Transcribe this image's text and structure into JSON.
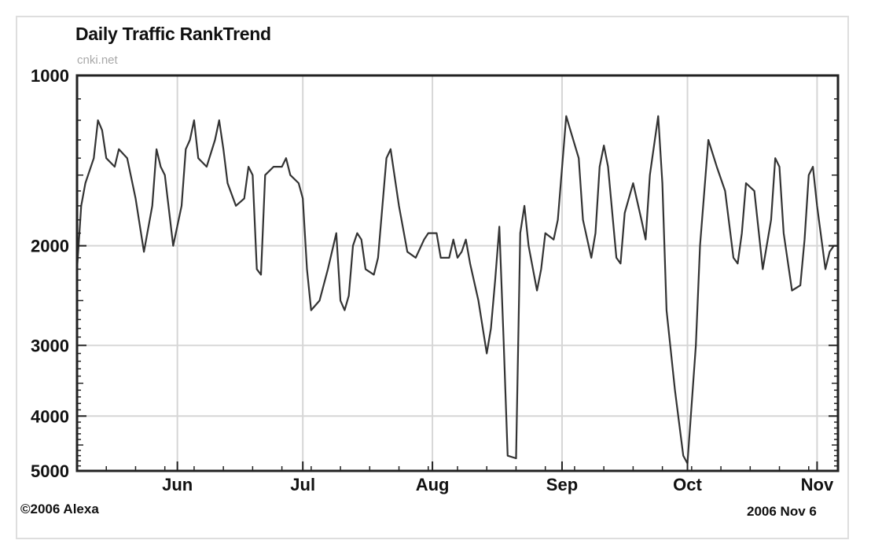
{
  "chart_data": {
    "type": "line",
    "title": "Daily Traffic RankTrend",
    "subtitle": "cnki.net",
    "copyright": "©2006 Alexa",
    "date_stamp": "2006 Nov 6",
    "y_scale": "log",
    "y_inverted": true,
    "ylim": [
      1000,
      5000
    ],
    "y_ticks": [
      {
        "value": 1000,
        "label": "1000"
      },
      {
        "value": 2000,
        "label": "2000"
      },
      {
        "value": 3000,
        "label": "3000"
      },
      {
        "value": 4000,
        "label": "4000"
      },
      {
        "value": 5000,
        "label": "5000"
      }
    ],
    "xlim": [
      "2006-05-08",
      "2006-11-06"
    ],
    "x_ticks": [
      {
        "date": "2006-06-01",
        "label": "Jun"
      },
      {
        "date": "2006-07-01",
        "label": "Jul"
      },
      {
        "date": "2006-08-01",
        "label": "Aug"
      },
      {
        "date": "2006-09-01",
        "label": "Sep"
      },
      {
        "date": "2006-10-01",
        "label": "Oct"
      },
      {
        "date": "2006-11-01",
        "label": "Nov"
      }
    ],
    "grid": true,
    "series": [
      {
        "color": "#333333",
        "points": [
          [
            "2006-05-08",
            2200
          ],
          [
            "2006-05-09",
            1700
          ],
          [
            "2006-05-10",
            1550
          ],
          [
            "2006-05-12",
            1400
          ],
          [
            "2006-05-13",
            1200
          ],
          [
            "2006-05-14",
            1250
          ],
          [
            "2006-05-15",
            1400
          ],
          [
            "2006-05-17",
            1450
          ],
          [
            "2006-05-18",
            1350
          ],
          [
            "2006-05-20",
            1400
          ],
          [
            "2006-05-22",
            1650
          ],
          [
            "2006-05-24",
            2050
          ],
          [
            "2006-05-26",
            1700
          ],
          [
            "2006-05-27",
            1350
          ],
          [
            "2006-05-28",
            1450
          ],
          [
            "2006-05-29",
            1500
          ],
          [
            "2006-05-31",
            2000
          ],
          [
            "2006-06-02",
            1700
          ],
          [
            "2006-06-03",
            1350
          ],
          [
            "2006-06-04",
            1300
          ],
          [
            "2006-06-05",
            1200
          ],
          [
            "2006-06-06",
            1400
          ],
          [
            "2006-06-08",
            1450
          ],
          [
            "2006-06-10",
            1300
          ],
          [
            "2006-06-11",
            1200
          ],
          [
            "2006-06-12",
            1350
          ],
          [
            "2006-06-13",
            1550
          ],
          [
            "2006-06-15",
            1700
          ],
          [
            "2006-06-17",
            1650
          ],
          [
            "2006-06-18",
            1450
          ],
          [
            "2006-06-19",
            1500
          ],
          [
            "2006-06-20",
            2200
          ],
          [
            "2006-06-21",
            2250
          ],
          [
            "2006-06-22",
            1500
          ],
          [
            "2006-06-24",
            1450
          ],
          [
            "2006-06-26",
            1450
          ],
          [
            "2006-06-27",
            1400
          ],
          [
            "2006-06-28",
            1500
          ],
          [
            "2006-06-30",
            1550
          ],
          [
            "2006-07-01",
            1650
          ],
          [
            "2006-07-02",
            2200
          ],
          [
            "2006-07-03",
            2600
          ],
          [
            "2006-07-05",
            2500
          ],
          [
            "2006-07-07",
            2200
          ],
          [
            "2006-07-09",
            1900
          ],
          [
            "2006-07-10",
            2500
          ],
          [
            "2006-07-11",
            2600
          ],
          [
            "2006-07-12",
            2450
          ],
          [
            "2006-07-13",
            2000
          ],
          [
            "2006-07-14",
            1900
          ],
          [
            "2006-07-15",
            1950
          ],
          [
            "2006-07-16",
            2200
          ],
          [
            "2006-07-18",
            2250
          ],
          [
            "2006-07-19",
            2100
          ],
          [
            "2006-07-21",
            1400
          ],
          [
            "2006-07-22",
            1350
          ],
          [
            "2006-07-24",
            1700
          ],
          [
            "2006-07-26",
            2050
          ],
          [
            "2006-07-28",
            2100
          ],
          [
            "2006-07-30",
            1950
          ],
          [
            "2006-07-31",
            1900
          ],
          [
            "2006-08-02",
            1900
          ],
          [
            "2006-08-03",
            2100
          ],
          [
            "2006-08-05",
            2100
          ],
          [
            "2006-08-06",
            1950
          ],
          [
            "2006-08-07",
            2100
          ],
          [
            "2006-08-08",
            2050
          ],
          [
            "2006-08-09",
            1950
          ],
          [
            "2006-08-10",
            2150
          ],
          [
            "2006-08-12",
            2500
          ],
          [
            "2006-08-14",
            3100
          ],
          [
            "2006-08-15",
            2800
          ],
          [
            "2006-08-16",
            2300
          ],
          [
            "2006-08-17",
            1850
          ],
          [
            "2006-08-18",
            2900
          ],
          [
            "2006-08-19",
            4700
          ],
          [
            "2006-08-21",
            4750
          ],
          [
            "2006-08-22",
            1900
          ],
          [
            "2006-08-23",
            1700
          ],
          [
            "2006-08-24",
            2000
          ],
          [
            "2006-08-26",
            2400
          ],
          [
            "2006-08-27",
            2200
          ],
          [
            "2006-08-28",
            1900
          ],
          [
            "2006-08-30",
            1950
          ],
          [
            "2006-08-31",
            1800
          ],
          [
            "2006-09-02",
            1180
          ],
          [
            "2006-09-03",
            1250
          ],
          [
            "2006-09-05",
            1400
          ],
          [
            "2006-09-06",
            1800
          ],
          [
            "2006-09-08",
            2100
          ],
          [
            "2006-09-09",
            1900
          ],
          [
            "2006-09-10",
            1450
          ],
          [
            "2006-09-11",
            1330
          ],
          [
            "2006-09-12",
            1450
          ],
          [
            "2006-09-14",
            2100
          ],
          [
            "2006-09-15",
            2150
          ],
          [
            "2006-09-16",
            1750
          ],
          [
            "2006-09-18",
            1550
          ],
          [
            "2006-09-20",
            1800
          ],
          [
            "2006-09-21",
            1950
          ],
          [
            "2006-09-22",
            1500
          ],
          [
            "2006-09-24",
            1180
          ],
          [
            "2006-09-25",
            1550
          ],
          [
            "2006-09-26",
            2600
          ],
          [
            "2006-09-28",
            3600
          ],
          [
            "2006-09-30",
            4700
          ],
          [
            "2006-10-01",
            4850
          ],
          [
            "2006-10-03",
            3000
          ],
          [
            "2006-10-04",
            2000
          ],
          [
            "2006-10-06",
            1300
          ],
          [
            "2006-10-08",
            1450
          ],
          [
            "2006-10-10",
            1600
          ],
          [
            "2006-10-12",
            2100
          ],
          [
            "2006-10-13",
            2150
          ],
          [
            "2006-10-14",
            1900
          ],
          [
            "2006-10-15",
            1550
          ],
          [
            "2006-10-17",
            1600
          ],
          [
            "2006-10-19",
            2200
          ],
          [
            "2006-10-21",
            1800
          ],
          [
            "2006-10-22",
            1400
          ],
          [
            "2006-10-23",
            1450
          ],
          [
            "2006-10-24",
            1900
          ],
          [
            "2006-10-26",
            2400
          ],
          [
            "2006-10-28",
            2350
          ],
          [
            "2006-10-29",
            1950
          ],
          [
            "2006-10-30",
            1500
          ],
          [
            "2006-10-31",
            1450
          ],
          [
            "2006-11-01",
            1700
          ],
          [
            "2006-11-03",
            2200
          ],
          [
            "2006-11-04",
            2050
          ],
          [
            "2006-11-05",
            2000
          ],
          [
            "2006-11-06",
            2000
          ]
        ]
      }
    ]
  }
}
